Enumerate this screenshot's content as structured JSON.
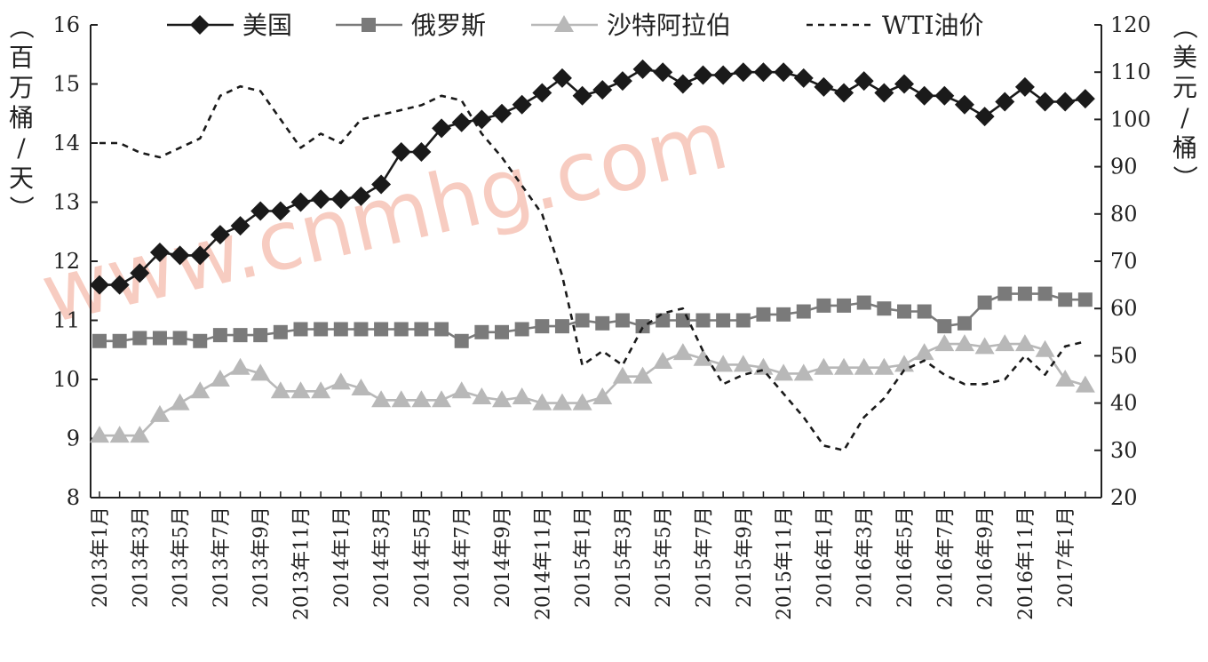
{
  "chart_data": {
    "type": "line",
    "watermark": "www.cnmhg.com",
    "y_left": {
      "label": "（百万桶/天）",
      "range": [
        8,
        16
      ],
      "ticks": [
        "8",
        "9",
        "10",
        "11",
        "12",
        "13",
        "14",
        "15",
        "16"
      ]
    },
    "y_right": {
      "label": "（美元/桶）",
      "range": [
        20,
        120
      ],
      "ticks": [
        "20",
        "30",
        "40",
        "50",
        "60",
        "70",
        "80",
        "90",
        "100",
        "110",
        "120"
      ]
    },
    "x_labels": [
      "2013年1月",
      "2013年3月",
      "2013年5月",
      "2013年7月",
      "2013年9月",
      "2013年11月",
      "2014年1月",
      "2014年3月",
      "2014年5月",
      "2014年7月",
      "2014年9月",
      "2014年11月",
      "2015年1月",
      "2015年3月",
      "2015年5月",
      "2015年7月",
      "2015年9月",
      "2015年11月",
      "2016年1月",
      "2016年3月",
      "2016年5月",
      "2016年7月",
      "2016年9月",
      "2016年11月",
      "2017年1月"
    ],
    "months_count": 50,
    "legend": [
      "美国",
      "俄罗斯",
      "沙特阿拉伯",
      "WTI油价"
    ],
    "series": [
      {
        "name": "美国",
        "axis": "left",
        "color": "#1a1a1a",
        "marker": "diamond",
        "values": [
          11.6,
          11.6,
          11.8,
          12.15,
          12.1,
          12.1,
          12.45,
          12.6,
          12.85,
          12.85,
          13.0,
          13.05,
          13.05,
          13.1,
          13.3,
          13.85,
          13.85,
          14.25,
          14.35,
          14.4,
          14.5,
          14.65,
          14.85,
          15.1,
          14.8,
          14.9,
          15.05,
          15.25,
          15.2,
          15.0,
          15.15,
          15.15,
          15.2,
          15.2,
          15.2,
          15.1,
          14.95,
          14.85,
          15.05,
          14.85,
          15.0,
          14.8,
          14.8,
          14.65,
          14.45,
          14.7,
          14.95,
          14.7,
          14.7,
          14.75
        ]
      },
      {
        "name": "俄罗斯",
        "axis": "left",
        "color": "#7a7a7a",
        "marker": "square",
        "values": [
          10.65,
          10.65,
          10.7,
          10.7,
          10.7,
          10.65,
          10.75,
          10.75,
          10.75,
          10.8,
          10.85,
          10.85,
          10.85,
          10.85,
          10.85,
          10.85,
          10.85,
          10.85,
          10.65,
          10.8,
          10.8,
          10.85,
          10.9,
          10.9,
          11.0,
          10.95,
          11.0,
          10.9,
          11.0,
          11.0,
          11.0,
          11.0,
          11.0,
          11.1,
          11.1,
          11.15,
          11.25,
          11.25,
          11.3,
          11.2,
          11.15,
          11.15,
          10.9,
          10.95,
          11.3,
          11.45,
          11.45,
          11.45,
          11.35,
          11.35
        ]
      },
      {
        "name": "沙特阿拉伯",
        "axis": "left",
        "color": "#b8b8b8",
        "marker": "triangle",
        "values": [
          9.05,
          9.05,
          9.05,
          9.4,
          9.6,
          9.8,
          10.0,
          10.2,
          10.1,
          9.8,
          9.8,
          9.8,
          9.95,
          9.85,
          9.65,
          9.65,
          9.65,
          9.65,
          9.8,
          9.7,
          9.65,
          9.7,
          9.6,
          9.6,
          9.6,
          9.7,
          10.05,
          10.05,
          10.3,
          10.45,
          10.35,
          10.25,
          10.25,
          10.2,
          10.1,
          10.1,
          10.2,
          10.2,
          10.2,
          10.2,
          10.25,
          10.45,
          10.6,
          10.6,
          10.55,
          10.6,
          10.6,
          10.5,
          10.0,
          9.9
        ]
      },
      {
        "name": "WTI油价",
        "axis": "right",
        "color": "#1a1a1a",
        "dash": "7,6",
        "values": [
          95,
          95,
          93,
          92,
          94,
          96,
          105,
          107,
          106,
          100,
          94,
          97,
          95,
          100,
          101,
          102,
          103,
          105,
          104,
          97,
          92,
          86,
          80,
          67,
          48,
          51,
          48,
          56,
          59,
          60,
          51,
          44,
          46,
          47,
          42,
          37,
          31,
          30,
          37,
          41,
          47,
          49,
          46,
          44,
          44,
          45,
          50,
          46,
          52,
          53
        ]
      }
    ]
  }
}
